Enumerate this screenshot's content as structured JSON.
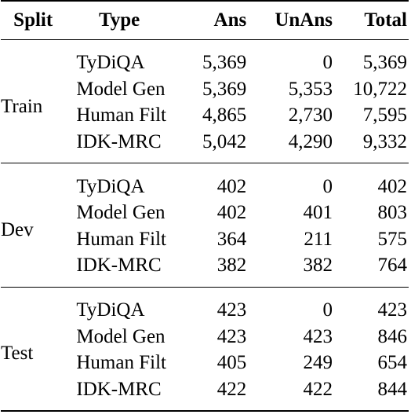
{
  "table": {
    "headers": {
      "split": "Split",
      "type": "Type",
      "ans": "Ans",
      "unans": "UnAns",
      "total": "Total"
    },
    "groups": [
      {
        "split": "Train",
        "rows": [
          {
            "type": "TyDiQA",
            "ans": "5,369",
            "unans": "0",
            "total": "5,369"
          },
          {
            "type": "Model Gen",
            "ans": "5,369",
            "unans": "5,353",
            "total": "10,722"
          },
          {
            "type": "Human Filt",
            "ans": "4,865",
            "unans": "2,730",
            "total": "7,595"
          },
          {
            "type": "IDK-MRC",
            "ans": "5,042",
            "unans": "4,290",
            "total": "9,332"
          }
        ]
      },
      {
        "split": "Dev",
        "rows": [
          {
            "type": "TyDiQA",
            "ans": "402",
            "unans": "0",
            "total": "402"
          },
          {
            "type": "Model Gen",
            "ans": "402",
            "unans": "401",
            "total": "803"
          },
          {
            "type": "Human Filt",
            "ans": "364",
            "unans": "211",
            "total": "575"
          },
          {
            "type": "IDK-MRC",
            "ans": "382",
            "unans": "382",
            "total": "764"
          }
        ]
      },
      {
        "split": "Test",
        "rows": [
          {
            "type": "TyDiQA",
            "ans": "423",
            "unans": "0",
            "total": "423"
          },
          {
            "type": "Model Gen",
            "ans": "423",
            "unans": "423",
            "total": "846"
          },
          {
            "type": "Human Filt",
            "ans": "405",
            "unans": "249",
            "total": "654"
          },
          {
            "type": "IDK-MRC",
            "ans": "422",
            "unans": "422",
            "total": "844"
          }
        ]
      }
    ]
  }
}
